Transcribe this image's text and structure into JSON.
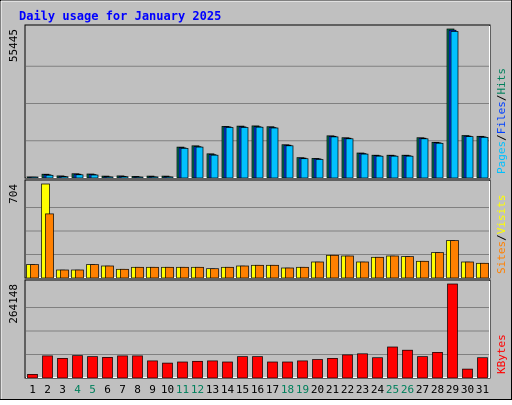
{
  "chart_data": {
    "type": "bar",
    "title": "Daily usage for January 2025",
    "colors": {
      "background": "#C0C0C0",
      "frame": "#FFFFFF",
      "hits": "#00805C",
      "files": "#0040FF",
      "pages": "#00C0FF",
      "visits": "#FFFF00",
      "sites": "#FF8000",
      "kbytes": "#FF0000",
      "title": "#0000FF",
      "weekend_label": "#00805C",
      "weekday_label": "#000000"
    },
    "categories": [
      "1",
      "2",
      "3",
      "4",
      "5",
      "6",
      "7",
      "8",
      "9",
      "10",
      "11",
      "12",
      "13",
      "14",
      "15",
      "16",
      "17",
      "18",
      "19",
      "20",
      "21",
      "22",
      "23",
      "24",
      "25",
      "26",
      "27",
      "28",
      "29",
      "30",
      "31"
    ],
    "weekend_days": [
      "4",
      "5",
      "11",
      "12",
      "18",
      "19",
      "25",
      "26"
    ],
    "panels": [
      {
        "id": "hits",
        "max_label": "55445",
        "ylim": [
          0,
          55445
        ],
        "legend": [
          "Pages",
          "Files",
          "Hits"
        ],
        "legend_separator": "/",
        "series": [
          {
            "name": "Hits",
            "values": [
              400,
              1400,
              800,
              1600,
              1500,
              700,
              800,
              600,
              700,
              700,
              11500,
              12000,
              9000,
              19200,
              19300,
              19400,
              19100,
              12400,
              7600,
              7300,
              15700,
              15000,
              9300,
              8500,
              8500,
              8500,
              15000,
              13300,
              55445,
              15800,
              15500
            ]
          },
          {
            "name": "Files",
            "values": [
              200,
              1200,
              600,
              1400,
              1300,
              500,
              600,
              400,
              500,
              500,
              11200,
              11700,
              8700,
              19000,
              19000,
              19100,
              18800,
              12200,
              7400,
              7100,
              15500,
              14800,
              9100,
              8300,
              8300,
              8300,
              14800,
              13100,
              55000,
              15600,
              15300
            ]
          },
          {
            "name": "Pages",
            "values": [
              150,
              1000,
              500,
              1200,
              1100,
              400,
              500,
              300,
              400,
              400,
              11000,
              11500,
              8500,
              18800,
              18800,
              18900,
              18600,
              12000,
              7200,
              6900,
              15300,
              14600,
              8900,
              8100,
              8100,
              8100,
              14600,
              12900,
              54500,
              15400,
              15100
            ]
          }
        ]
      },
      {
        "id": "visits",
        "max_label": "704",
        "ylim": [
          0,
          704
        ],
        "legend": [
          "Sites",
          "Visits"
        ],
        "legend_separator": "/",
        "series": [
          {
            "name": "Visits",
            "values": [
              100,
              704,
              60,
              60,
              100,
              90,
              65,
              80,
              80,
              80,
              80,
              80,
              70,
              80,
              90,
              95,
              95,
              75,
              80,
              120,
              170,
              165,
              120,
              155,
              165,
              160,
              125,
              190,
              280,
              120,
              110
            ]
          },
          {
            "name": "Sites",
            "values": [
              100,
              480,
              60,
              60,
              100,
              90,
              65,
              80,
              80,
              80,
              80,
              80,
              70,
              80,
              90,
              95,
              95,
              75,
              80,
              120,
              170,
              165,
              120,
              155,
              165,
              160,
              125,
              190,
              280,
              120,
              110
            ]
          }
        ]
      },
      {
        "id": "kbytes",
        "max_label": "264148",
        "ylim": [
          0,
          264148
        ],
        "legend": [
          "KBytes"
        ],
        "legend_separator": "/",
        "series": [
          {
            "name": "KBytes",
            "values": [
              10000,
              62000,
              55000,
              63000,
              60000,
              58000,
              62000,
              62000,
              48000,
              42000,
              45000,
              47000,
              48000,
              45000,
              60000,
              60000,
              45000,
              45000,
              48000,
              52000,
              55000,
              65000,
              68000,
              57000,
              87000,
              78000,
              60000,
              72000,
              264148,
              25000,
              57000
            ]
          }
        ]
      }
    ]
  }
}
